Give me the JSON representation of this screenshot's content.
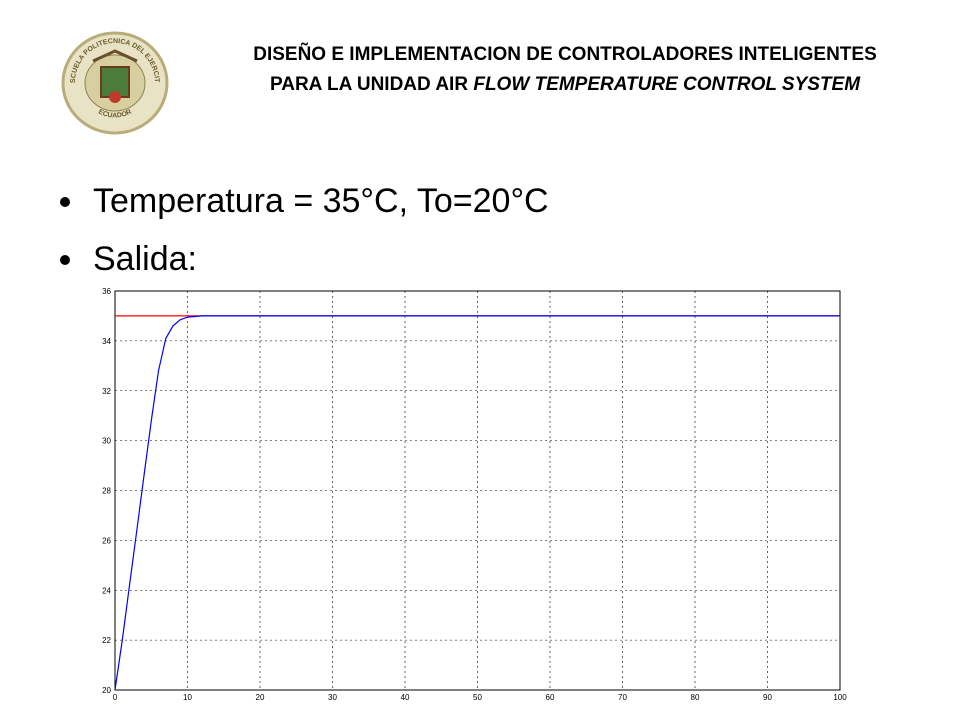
{
  "header": {
    "title_plain": "DISEÑO E IMPLEMENTACION DE CONTROLADORES INTELIGENTES PARA LA UNIDAD AIR",
    "title_italic": "FLOW TEMPERATURE CONTROL SYSTEM",
    "logo_top": "ESCUELA POLITECNICA DEL EJERCITO",
    "logo_bottom": "ECUADOR"
  },
  "bullets": [
    "Temperatura = 35°C, To=20°C",
    "Salida:"
  ],
  "chart_data": {
    "type": "line",
    "xlim": [
      0,
      100
    ],
    "ylim": [
      20,
      36
    ],
    "xticks": [
      0,
      10,
      20,
      30,
      40,
      50,
      60,
      70,
      80,
      90,
      100
    ],
    "yticks": [
      20,
      22,
      24,
      26,
      28,
      30,
      32,
      34,
      36
    ],
    "grid": true,
    "series": [
      {
        "color": "#ff0000",
        "x": [
          0,
          100
        ],
        "values": [
          35,
          35
        ]
      },
      {
        "color": "#0000ff",
        "x": [
          0,
          1,
          2,
          3,
          4,
          5,
          6,
          7,
          8,
          9,
          10,
          12,
          100
        ],
        "values": [
          20,
          22,
          24.2,
          26.4,
          28.6,
          30.8,
          32.8,
          34.1,
          34.6,
          34.85,
          34.95,
          35,
          35
        ]
      }
    ]
  }
}
